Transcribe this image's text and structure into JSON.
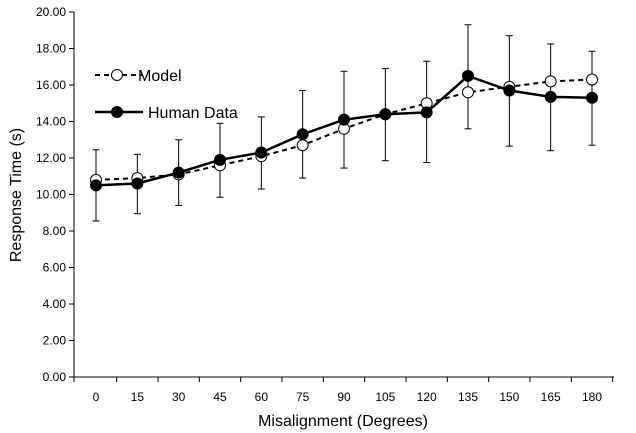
{
  "chart_data": {
    "type": "line",
    "xlabel": "Misalignment (Degrees)",
    "ylabel": "Response Time (s)",
    "x": [
      0,
      15,
      30,
      45,
      60,
      75,
      90,
      105,
      120,
      135,
      150,
      165,
      180
    ],
    "x_tick_labels": [
      "0",
      "15",
      "30",
      "45",
      "60",
      "75",
      "90",
      "105",
      "120",
      "135",
      "150",
      "165",
      "180"
    ],
    "y_tick_labels": [
      "0.00",
      "2.00",
      "4.00",
      "6.00",
      "8.00",
      "10.00",
      "12.00",
      "14.00",
      "16.00",
      "18.00",
      "20.00"
    ],
    "ylim": [
      0,
      20
    ],
    "grid": false,
    "legend_position": "top-left",
    "series": [
      {
        "name": "Model",
        "style": "dashed",
        "marker": "open-circle",
        "color": "#000000",
        "values": [
          10.8,
          10.9,
          11.1,
          11.6,
          12.1,
          12.7,
          13.6,
          14.4,
          15.0,
          15.6,
          15.9,
          16.2,
          16.3
        ]
      },
      {
        "name": "Human Data",
        "style": "solid",
        "marker": "filled-circle",
        "color": "#000000",
        "values": [
          10.5,
          10.6,
          11.2,
          11.9,
          12.3,
          13.3,
          14.1,
          14.4,
          14.5,
          16.5,
          15.7,
          15.35,
          15.3
        ],
        "error_upper": [
          12.45,
          12.2,
          13.0,
          13.9,
          14.25,
          15.7,
          16.75,
          16.9,
          17.3,
          19.3,
          18.7,
          18.25,
          17.85
        ],
        "error_lower": [
          8.55,
          8.95,
          9.4,
          9.85,
          10.3,
          10.9,
          11.45,
          11.85,
          11.75,
          13.6,
          12.65,
          12.4,
          12.7
        ]
      }
    ]
  }
}
